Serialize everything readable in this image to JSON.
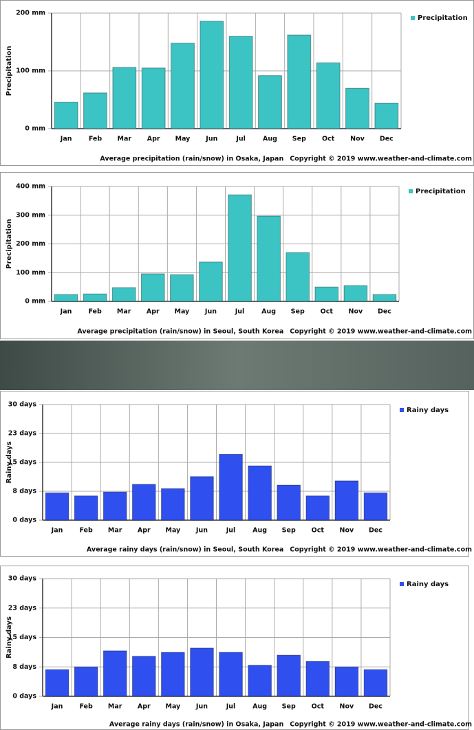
{
  "chart_data": [
    {
      "type": "bar",
      "y_label": "Precipitation",
      "caption": "Average precipitation (rain/snow) in Osaka, Japan",
      "copyright": "Copyright © 2019 www.weather-and-climate.com",
      "categories": [
        "Jan",
        "Feb",
        "Mar",
        "Apr",
        "May",
        "Jun",
        "Jul",
        "Aug",
        "Sep",
        "Oct",
        "Nov",
        "Dec"
      ],
      "series": [
        {
          "name": "Precipitation",
          "color": "#3cc3c3",
          "values": [
            46,
            62,
            106,
            105,
            148,
            186,
            160,
            92,
            162,
            114,
            70,
            44
          ]
        }
      ],
      "ylim": [
        0,
        200
      ],
      "yticks": [
        {
          "value": 0,
          "label": "0 mm"
        },
        {
          "value": 100,
          "label": "100 mm"
        },
        {
          "value": 200,
          "label": "200 mm"
        }
      ],
      "grid": true,
      "legend": "right"
    },
    {
      "type": "bar",
      "y_label": "Precipitation",
      "caption": "Average precipitation (rain/snow) in Seoul, South Korea",
      "copyright": "Copyright © 2019 www.weather-and-climate.com",
      "categories": [
        "Jan",
        "Feb",
        "Mar",
        "Apr",
        "May",
        "Jun",
        "Jul",
        "Aug",
        "Sep",
        "Oct",
        "Nov",
        "Dec"
      ],
      "series": [
        {
          "name": "Precipitation",
          "color": "#3cc3c3",
          "values": [
            24,
            26,
            48,
            96,
            93,
            137,
            371,
            297,
            170,
            50,
            55,
            24
          ]
        }
      ],
      "ylim": [
        0,
        400
      ],
      "yticks": [
        {
          "value": 0,
          "label": "0 mm"
        },
        {
          "value": 100,
          "label": "100 mm"
        },
        {
          "value": 200,
          "label": "200 mm"
        },
        {
          "value": 300,
          "label": "300 mm"
        },
        {
          "value": 400,
          "label": "400 mm"
        }
      ],
      "grid": true,
      "legend": "right"
    },
    {
      "type": "bar",
      "y_label": "Rainy days",
      "caption": "Average rainy days (rain/snow) in Seoul, South Korea",
      "copyright": "Copyright © 2019 www.weather-and-climate.com",
      "categories": [
        "Jan",
        "Feb",
        "Mar",
        "Apr",
        "May",
        "Jun",
        "Jul",
        "Aug",
        "Sep",
        "Oct",
        "Nov",
        "Dec"
      ],
      "series": [
        {
          "name": "Rainy days",
          "color": "#2f50ee",
          "values": [
            7.1,
            6.3,
            7.3,
            9.3,
            8.2,
            11.3,
            17.1,
            14.1,
            9.1,
            6.3,
            10.2,
            7.1
          ]
        }
      ],
      "ylim": [
        0,
        30
      ],
      "yticks": [
        {
          "value": 0,
          "label": "0 days"
        },
        {
          "value": 7.5,
          "label": "8 days"
        },
        {
          "value": 15,
          "label": "15 days"
        },
        {
          "value": 22.5,
          "label": "23 days"
        },
        {
          "value": 30,
          "label": "30 days"
        }
      ],
      "grid": true,
      "legend": "right"
    },
    {
      "type": "bar",
      "y_label": "Rainy days",
      "caption": "Average rainy days (rain/snow) in Osaka, Japan",
      "copyright": "Copyright © 2019 www.weather-and-climate.com",
      "categories": [
        "Jan",
        "Feb",
        "Mar",
        "Apr",
        "May",
        "Jun",
        "Jul",
        "Aug",
        "Sep",
        "Oct",
        "Nov",
        "Dec"
      ],
      "series": [
        {
          "name": "Rainy days",
          "color": "#2f50ee",
          "values": [
            6.8,
            7.5,
            11.6,
            10.2,
            11.2,
            12.3,
            11.2,
            7.9,
            10.5,
            8.9,
            7.5,
            6.8
          ]
        }
      ],
      "ylim": [
        0,
        30
      ],
      "yticks": [
        {
          "value": 0,
          "label": "0 days"
        },
        {
          "value": 7.5,
          "label": "8 days"
        },
        {
          "value": 15,
          "label": "15 days"
        },
        {
          "value": 22.5,
          "label": "23 days"
        },
        {
          "value": 30,
          "label": "30 days"
        }
      ],
      "grid": true,
      "legend": "right"
    }
  ]
}
